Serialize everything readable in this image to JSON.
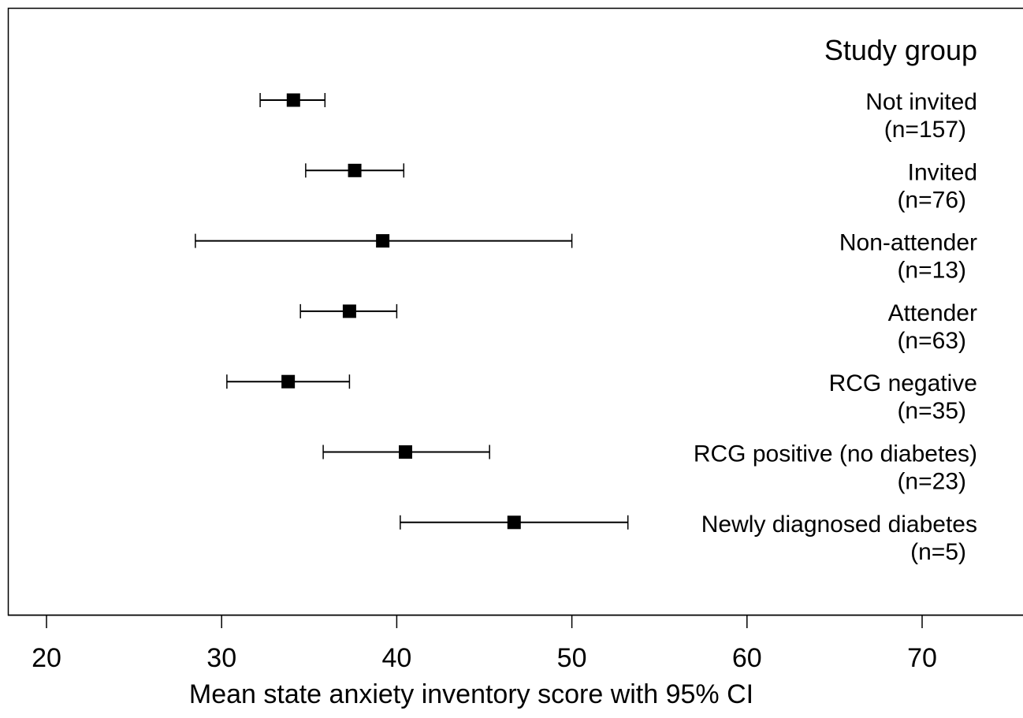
{
  "chart_data": {
    "type": "forest",
    "legend_title": "Study group",
    "xlabel": "Mean state anxiety inventory score with 95% CI",
    "xlim": [
      17.8,
      75.6
    ],
    "xticks": [
      20,
      30,
      40,
      50,
      60,
      70
    ],
    "groups": [
      {
        "name": "Not invited",
        "n": "(n=157)",
        "mean": 34.1,
        "lower": 32.2,
        "upper": 35.9
      },
      {
        "name": "Invited",
        "n": "(n=76)",
        "mean": 37.6,
        "lower": 34.8,
        "upper": 40.4
      },
      {
        "name": "Non-attender",
        "n": "(n=13)",
        "mean": 39.2,
        "lower": 28.5,
        "upper": 50.0
      },
      {
        "name": "Attender",
        "n": "(n=63)",
        "mean": 37.3,
        "lower": 34.5,
        "upper": 40.0
      },
      {
        "name": "RCG negative",
        "n": "(n=35)",
        "mean": 33.8,
        "lower": 30.3,
        "upper": 37.3
      },
      {
        "name": "RCG positive (no diabetes)",
        "n": "(n=23)",
        "mean": 40.5,
        "lower": 35.8,
        "upper": 45.3
      },
      {
        "name": "Newly diagnosed diabetes",
        "n": "(n=5)",
        "mean": 46.7,
        "lower": 40.2,
        "upper": 53.2
      }
    ]
  }
}
